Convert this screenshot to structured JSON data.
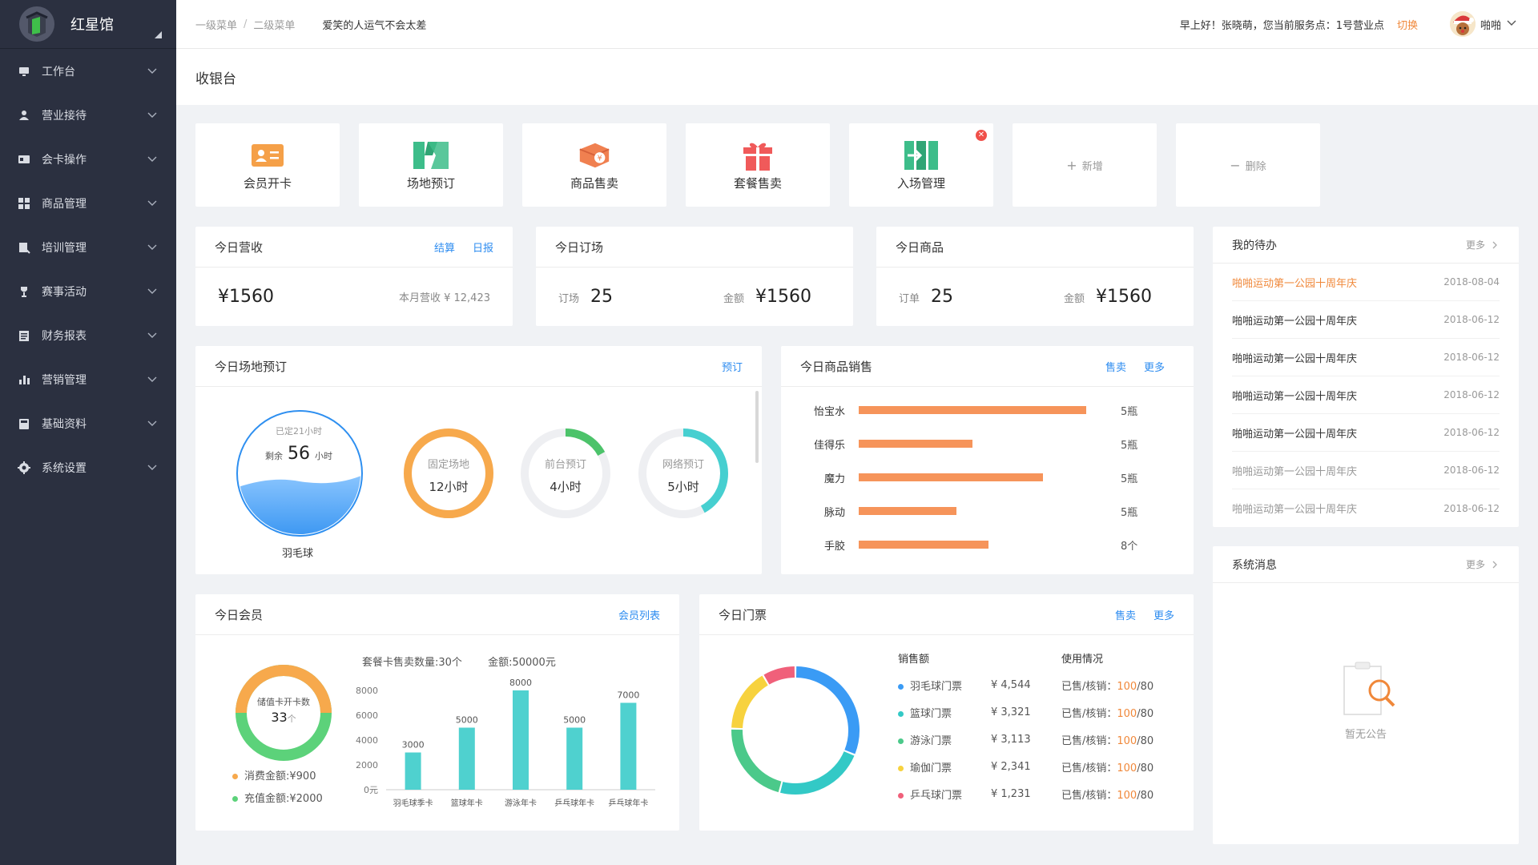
{
  "brand": {
    "name": "红星馆"
  },
  "sidebar": {
    "items": [
      {
        "label": "工作台",
        "icon": "monitor-icon"
      },
      {
        "label": "营业接待",
        "icon": "reception-icon"
      },
      {
        "label": "会卡操作",
        "icon": "card-icon"
      },
      {
        "label": "商品管理",
        "icon": "grid-icon"
      },
      {
        "label": "培训管理",
        "icon": "training-icon"
      },
      {
        "label": "赛事活动",
        "icon": "trophy-icon"
      },
      {
        "label": "财务报表",
        "icon": "report-icon"
      },
      {
        "label": "营销管理",
        "icon": "bar-chart-icon"
      },
      {
        "label": "基础资料",
        "icon": "folder-icon"
      },
      {
        "label": "系统设置",
        "icon": "gear-icon"
      }
    ]
  },
  "header": {
    "breadcrumb": [
      "一级菜单",
      "二级菜单"
    ],
    "motto": "爱笑的人运气不会太差",
    "greeting": "早上好！张晓萌，您当前服务点：1号营业点",
    "switch_label": "切换",
    "user_name": "啪啪"
  },
  "page": {
    "title": "收银台"
  },
  "quick_actions": [
    {
      "label": "会员开卡",
      "icon": "member-card-icon",
      "color": "#f5a048"
    },
    {
      "label": "场地预订",
      "icon": "venue-icon",
      "color": "#3dbd8a"
    },
    {
      "label": "商品售卖",
      "icon": "product-box-icon",
      "color": "#f08050"
    },
    {
      "label": "套餐售卖",
      "icon": "gift-icon",
      "color": "#f05a5a"
    },
    {
      "label": "入场管理",
      "icon": "entrance-icon",
      "color": "#3dbd8a"
    },
    {
      "label": "新增",
      "symbol": "+"
    },
    {
      "label": "删除",
      "symbol": "−"
    }
  ],
  "revenue": {
    "title": "今日营收",
    "links": [
      "结算",
      "日报"
    ],
    "amount": "¥1560",
    "month_label": "本月营收 ¥ 12,423"
  },
  "booking_stat": {
    "title": "今日订场",
    "count_label": "订场",
    "count": "25",
    "amount_label": "金额",
    "amount": "¥1560"
  },
  "goods_stat": {
    "title": "今日商品",
    "count_label": "订单",
    "count": "25",
    "amount_label": "金额",
    "amount": "¥1560"
  },
  "venue_booking": {
    "title": "今日场地预订",
    "link": "预订",
    "badminton": {
      "booked": "已定21小时",
      "remain_label": "剩余",
      "remain": "56",
      "unit": "小时",
      "name": "羽毛球"
    },
    "rings": [
      {
        "label": "固定场地",
        "value": "12小时",
        "color": "#f7a94c",
        "fraction": 1.0
      },
      {
        "label": "前台预订",
        "value": "4小时",
        "color": "#4cc36a",
        "fraction": 0.17
      },
      {
        "label": "网络预订",
        "value": "5小时",
        "color": "#46cfd0",
        "fraction": 0.42
      }
    ]
  },
  "goods_sales": {
    "title": "今日商品销售",
    "links": [
      "售卖",
      "更多"
    ],
    "rows": [
      {
        "name": "怡宝水",
        "qty": "5瓶",
        "value": 1.0
      },
      {
        "name": "佳得乐",
        "qty": "5瓶",
        "value": 0.5
      },
      {
        "name": "魔力",
        "qty": "5瓶",
        "value": 0.81
      },
      {
        "name": "脉动",
        "qty": "5瓶",
        "value": 0.43
      },
      {
        "name": "手胶",
        "qty": "8个",
        "value": 0.57
      }
    ],
    "bar_color": "#f6945a"
  },
  "todo": {
    "title": "我的待办",
    "more": "更多",
    "items": [
      {
        "title": "啪啪运动第一公园十周年庆",
        "date": "2018-08-04",
        "state": "highlight"
      },
      {
        "title": "啪啪运动第一公园十周年庆",
        "date": "2018-06-12",
        "state": "normal"
      },
      {
        "title": "啪啪运动第一公园十周年庆",
        "date": "2018-06-12",
        "state": "normal"
      },
      {
        "title": "啪啪运动第一公园十周年庆",
        "date": "2018-06-12",
        "state": "normal"
      },
      {
        "title": "啪啪运动第一公园十周年庆",
        "date": "2018-06-12",
        "state": "normal"
      },
      {
        "title": "啪啪运动第一公园十周年庆",
        "date": "2018-06-12",
        "state": "muted"
      },
      {
        "title": "啪啪运动第一公园十周年庆",
        "date": "2018-06-12",
        "state": "muted"
      }
    ]
  },
  "members": {
    "title": "今日会员",
    "link": "会员列表",
    "donut_label": "储值卡开卡数",
    "donut_count": "33",
    "donut_unit": "个",
    "consume_label": "消费金额:¥900",
    "recharge_label": "充值金额:¥2000",
    "summary_count": "套餐卡售卖数量:30个",
    "summary_amount": "金额:50000元"
  },
  "chart_data": [
    {
      "type": "bar",
      "categories": [
        "羽毛球季卡",
        "篮球年卡",
        "游泳年卡",
        "乒乓球年卡",
        "乒乓球年卡"
      ],
      "values": [
        3000,
        5000,
        8000,
        5000,
        7000
      ],
      "ylim": [
        0,
        8000
      ],
      "yticks": [
        "0元",
        "2000",
        "4000",
        "6000",
        "8000"
      ],
      "color": "#4fd1cf",
      "grid": false
    },
    {
      "type": "pie",
      "categories": [
        "羽毛球门票",
        "篮球门票",
        "游泳门票",
        "瑜伽门票",
        "乒乓球门票"
      ],
      "values": [
        4544,
        3321,
        3113,
        2341,
        1231
      ],
      "colors": [
        "#3a9bf5",
        "#33c9c6",
        "#4bc98a",
        "#f7d23e",
        "#f0607a"
      ]
    }
  ],
  "tickets": {
    "title": "今日门票",
    "links": [
      "售卖",
      "更多"
    ],
    "col_sales": "销售额",
    "col_usage": "使用情况",
    "rows": [
      {
        "name": "羽毛球门票",
        "amount": "¥ 4,544",
        "usage_label": "已售/核销：",
        "used": "100",
        "total": "/80",
        "color": "#3a9bf5"
      },
      {
        "name": "篮球门票",
        "amount": "¥ 3,321",
        "usage_label": "已售/核销：",
        "used": "100",
        "total": "/80",
        "color": "#33c9c6"
      },
      {
        "name": "游泳门票",
        "amount": "¥ 3,113",
        "usage_label": "已售/核销：",
        "used": "100",
        "total": "/80",
        "color": "#4bc98a"
      },
      {
        "name": "瑜伽门票",
        "amount": "¥ 2,341",
        "usage_label": "已售/核销：",
        "used": "100",
        "total": "/80",
        "color": "#f7d23e"
      },
      {
        "name": "乒乓球门票",
        "amount": "¥ 1,231",
        "usage_label": "已售/核销：",
        "used": "100",
        "total": "/80",
        "color": "#f0607a"
      }
    ]
  },
  "system_msg": {
    "title": "系统消息",
    "more": "更多",
    "empty": "暂无公告"
  },
  "colors": {
    "accent": "#2d8cf0",
    "orange": "#f0883a",
    "sidebar": "#2b3040"
  }
}
